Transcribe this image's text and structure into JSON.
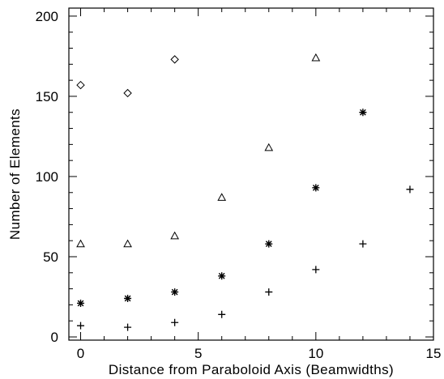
{
  "chart_data": {
    "type": "scatter",
    "title": "",
    "xlabel": "Distance from Paraboloid Axis (Beamwidths)",
    "ylabel": "Number of Elements",
    "xlim": [
      -0.5,
      15
    ],
    "ylim": [
      -2,
      205
    ],
    "xticks": [
      0,
      5,
      10,
      15
    ],
    "yticks": [
      0,
      50,
      100,
      150,
      200
    ],
    "grid": false,
    "legend": "none",
    "series": [
      {
        "marker": "diamond",
        "x": [
          0,
          2,
          4
        ],
        "y": [
          157,
          152,
          173
        ]
      },
      {
        "marker": "triangle",
        "x": [
          0,
          2,
          4,
          6,
          8,
          10
        ],
        "y": [
          58,
          58,
          63,
          87,
          118,
          174
        ]
      },
      {
        "marker": "asterisk",
        "x": [
          0,
          2,
          4,
          6,
          8,
          10,
          12
        ],
        "y": [
          21,
          24,
          28,
          38,
          58,
          93,
          140
        ]
      },
      {
        "marker": "plus",
        "x": [
          0,
          2,
          4,
          6,
          8,
          10,
          12,
          14
        ],
        "y": [
          7,
          6,
          9,
          14,
          28,
          42,
          58,
          92
        ]
      }
    ]
  }
}
